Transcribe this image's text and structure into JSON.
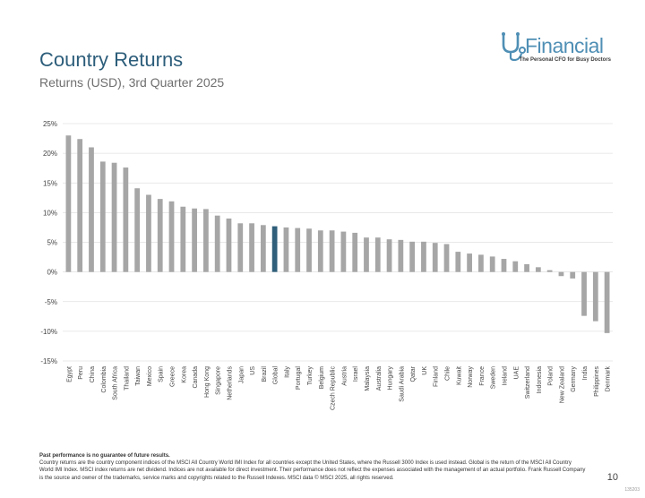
{
  "header": {
    "title": "Country Returns",
    "subtitle": "Returns (USD), 3rd Quarter 2025"
  },
  "logo": {
    "word": "Financial",
    "tagline": "The Personal CFO for Busy Doctors",
    "icon": "stethoscope-md-icon",
    "color": "#4f8fb5"
  },
  "colors": {
    "bar": "#a6a6a6",
    "highlight": "#2f5f7a",
    "grid": "#e1e1e1"
  },
  "chart_data": {
    "type": "bar",
    "categories": [
      "Egypt",
      "Peru",
      "China",
      "Colombia",
      "South Africa",
      "Thailand",
      "Taiwan",
      "Mexico",
      "Spain",
      "Greece",
      "Korea",
      "Canada",
      "Hong Kong",
      "Singapore",
      "Netherlands",
      "Japan",
      "US",
      "Brazil",
      "Global",
      "Italy",
      "Portugal",
      "Turkey",
      "Belgium",
      "Czech Republic",
      "Austria",
      "Israel",
      "Malaysia",
      "Australia",
      "Hungary",
      "Saudi Arabia",
      "Qatar",
      "UK",
      "Finland",
      "Chile",
      "Kuwait",
      "Norway",
      "France",
      "Sweden",
      "Ireland",
      "UAE",
      "Switzerland",
      "Indonesia",
      "Poland",
      "New Zealand",
      "Germany",
      "India",
      "Philippines",
      "Denmark"
    ],
    "values": [
      23.0,
      22.4,
      21.0,
      18.6,
      18.4,
      17.6,
      14.1,
      13.0,
      12.3,
      11.9,
      11.0,
      10.7,
      10.6,
      9.5,
      9.0,
      8.2,
      8.2,
      7.9,
      7.7,
      7.5,
      7.4,
      7.3,
      7.0,
      7.0,
      6.8,
      6.6,
      5.8,
      5.8,
      5.5,
      5.4,
      5.1,
      5.1,
      4.9,
      4.7,
      3.4,
      3.1,
      2.9,
      2.6,
      2.2,
      1.8,
      1.3,
      0.8,
      0.3,
      -0.7,
      -1.1,
      -7.4,
      -8.3,
      -10.3
    ],
    "highlight": "Global",
    "ylim": [
      -15,
      25
    ],
    "yticks": [
      -15,
      -10,
      -5,
      0,
      5,
      10,
      15,
      20,
      25
    ],
    "ytick_labels": [
      "-15%",
      "-10%",
      "-5%",
      "0%",
      "5%",
      "10%",
      "15%",
      "20%",
      "25%"
    ],
    "grid": true,
    "xlabel": "",
    "ylabel": ""
  },
  "footer": {
    "disclaimer_head": "Past performance is no guarantee of future results.",
    "disclaimer_body": "Country returns are the country component indices of the MSCI All Country World IMI Index for all countries except the United States, where the Russell 3000 Index is used instead. Global is the return of the MSCI All Country World IMI Index. MSCI index returns are net dividend. Indices are not available for direct investment. Their performance does not reflect the expenses associated with the management of an actual portfolio. Frank Russell Company is the source and owner of the trademarks, service marks and copyrights related to the Russell Indexes. MSCI data © MSCI 2025, all rights reserved.",
    "page_number": "10",
    "code": "135203"
  }
}
